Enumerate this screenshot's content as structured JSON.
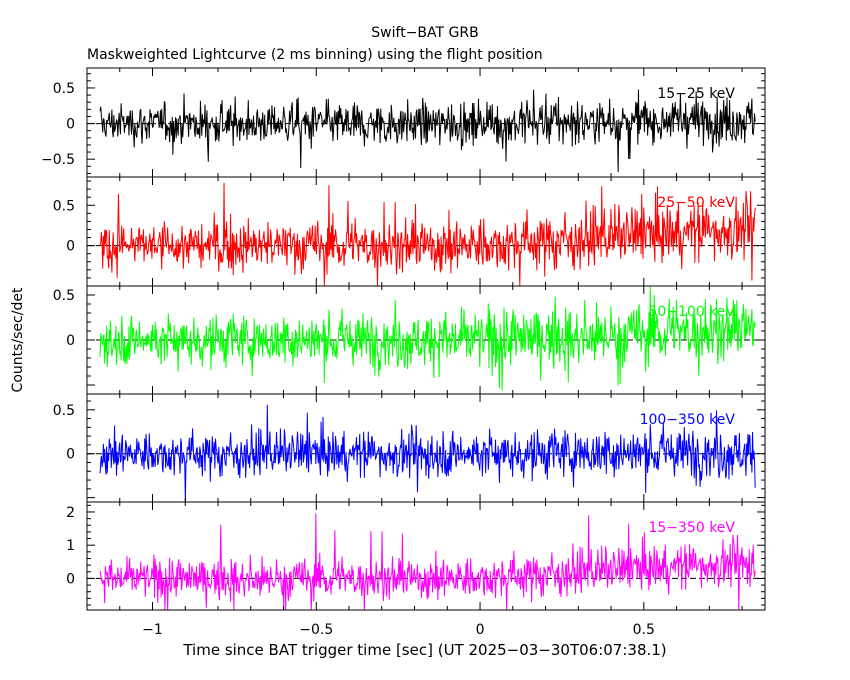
{
  "chart_data": {
    "type": "line",
    "title": "Swift−BAT GRB",
    "subtitle": "Maskweighted Lightcurve (2 ms binning) using the flight position",
    "xlabel": "Time since BAT trigger time [sec] (UT 2025−03−30T06:07:38.1)",
    "ylabel": "Counts/sec/det",
    "xlim": [
      -1.2,
      0.87
    ],
    "x_ticks": [
      -1,
      -0.5,
      0,
      0.5
    ],
    "x_tick_labels": [
      "−1",
      "−0.5",
      "0",
      "0.5"
    ],
    "x_range_data": [
      -1.16,
      0.84
    ],
    "grid": false,
    "panels": [
      {
        "name": "15−25 keV",
        "color": "#000000",
        "ylim": [
          -0.75,
          0.78
        ],
        "y_ticks": [
          -0.5,
          0,
          0.5
        ],
        "y_tick_labels": [
          "−0.5",
          "0",
          "0.5"
        ],
        "noise": [
          0.13,
          0.17
        ],
        "signal": [
          0.0,
          0.06
        ],
        "spike": 0.7
      },
      {
        "name": "25−50 keV",
        "color": "#ff0000",
        "ylim": [
          -0.5,
          0.85
        ],
        "y_ticks": [
          0,
          0.5
        ],
        "y_tick_labels": [
          "0",
          "0.5"
        ],
        "noise": [
          0.14,
          0.19
        ],
        "signal": [
          0.0,
          0.22
        ],
        "spike": 0.8
      },
      {
        "name": "50−100 keV",
        "color": "#00ff00",
        "ylim": [
          -0.6,
          0.6
        ],
        "y_ticks": [
          0,
          0.5
        ],
        "y_tick_labels": [
          "0",
          "0.5"
        ],
        "noise": [
          0.14,
          0.17
        ],
        "signal": [
          0.0,
          0.12
        ],
        "spike": 0.6
      },
      {
        "name": "100−350 keV",
        "color": "#0000ff",
        "ylim": [
          -0.55,
          0.68
        ],
        "y_ticks": [
          0,
          0.5
        ],
        "y_tick_labels": [
          "0",
          "0.5"
        ],
        "noise": [
          0.12,
          0.15
        ],
        "signal": [
          0.0,
          0.02
        ],
        "spike": 0.65
      },
      {
        "name": "15−350 keV",
        "color": "#ff00ff",
        "ylim": [
          -0.95,
          2.3
        ],
        "y_ticks": [
          0,
          1,
          2
        ],
        "y_tick_labels": [
          "0",
          "1",
          "2"
        ],
        "noise": [
          0.28,
          0.35
        ],
        "signal": [
          0.0,
          0.5
        ],
        "spike": 2.1
      }
    ]
  }
}
